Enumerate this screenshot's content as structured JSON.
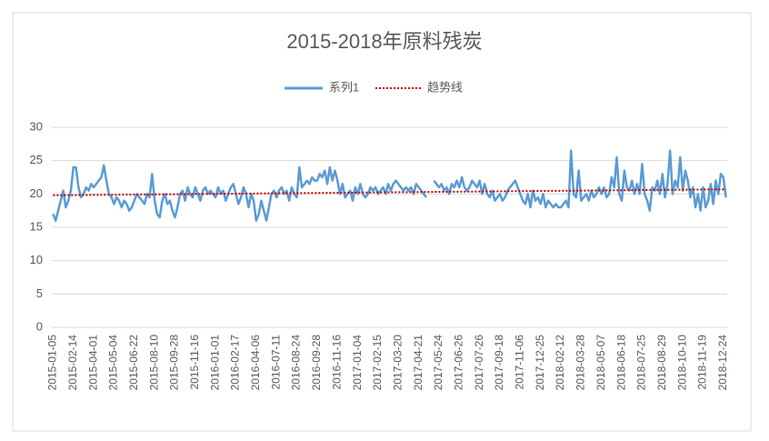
{
  "chart_data": {
    "type": "line",
    "title": "2015-2018年原料残炭",
    "categories": [
      "2015-01-05",
      null,
      null,
      null,
      null,
      null,
      null,
      null,
      "2015-02-14",
      null,
      null,
      null,
      null,
      null,
      null,
      null,
      "2015-04-01",
      null,
      null,
      null,
      null,
      null,
      null,
      null,
      "2015-05-04",
      null,
      null,
      null,
      null,
      null,
      null,
      null,
      "2015-06-22",
      null,
      null,
      null,
      null,
      null,
      null,
      null,
      "2015-08-10",
      null,
      null,
      null,
      null,
      null,
      null,
      null,
      "2015-09-28",
      null,
      null,
      null,
      null,
      null,
      null,
      null,
      "2015-11-16",
      null,
      null,
      null,
      null,
      null,
      null,
      null,
      "2016-01-01",
      null,
      null,
      null,
      null,
      null,
      null,
      null,
      "2016-02-17",
      null,
      null,
      null,
      null,
      null,
      null,
      null,
      "2016-04-06",
      null,
      null,
      null,
      null,
      null,
      null,
      null,
      "2016-07-11",
      null,
      null,
      null,
      null,
      null,
      null,
      null,
      "2016-08-24",
      null,
      null,
      null,
      null,
      null,
      null,
      null,
      "2016-09-28",
      null,
      null,
      null,
      null,
      null,
      null,
      null,
      "2016-11-16",
      null,
      null,
      null,
      null,
      null,
      null,
      null,
      "2017-01-04",
      null,
      null,
      null,
      null,
      null,
      null,
      null,
      "2017-02-15",
      null,
      null,
      null,
      null,
      null,
      null,
      null,
      "2017-03-20",
      null,
      null,
      null,
      null,
      null,
      null,
      null,
      "2017-04-21",
      null,
      null,
      null,
      null,
      null,
      null,
      null,
      "2017-05-24",
      null,
      null,
      null,
      null,
      null,
      null,
      null,
      "2017-06-26",
      null,
      null,
      null,
      null,
      null,
      null,
      null,
      "2017-07-26",
      null,
      null,
      null,
      null,
      null,
      null,
      null,
      "2017-09-18",
      null,
      null,
      null,
      null,
      null,
      null,
      null,
      "2017-11-06",
      null,
      null,
      null,
      null,
      null,
      null,
      null,
      "2017-12-25",
      null,
      null,
      null,
      null,
      null,
      null,
      null,
      "2018-02-12",
      null,
      null,
      null,
      null,
      null,
      null,
      null,
      "2018-03-28",
      null,
      null,
      null,
      null,
      null,
      null,
      null,
      "2018-05-07",
      null,
      null,
      null,
      null,
      null,
      null,
      null,
      "2018-06-18",
      null,
      null,
      null,
      null,
      null,
      null,
      null,
      "2018-07-25",
      null,
      null,
      null,
      null,
      null,
      null,
      null,
      "2018-08-29",
      null,
      null,
      null,
      null,
      null,
      null,
      null,
      "2018-10-10",
      null,
      null,
      null,
      null,
      null,
      null,
      null,
      "2018-11-19",
      null,
      null,
      null,
      null,
      null,
      null,
      null,
      "2018-12-24",
      null
    ],
    "series": [
      {
        "name": "系列1",
        "color": "#5b9bd5",
        "values": [
          17,
          16,
          17.5,
          19,
          20.5,
          18,
          19,
          20.5,
          24,
          24,
          21,
          19.5,
          20,
          21,
          20.5,
          21.5,
          21,
          21.5,
          22,
          22.5,
          24.3,
          22,
          20,
          19.5,
          18.5,
          19.5,
          19,
          18,
          19,
          18.5,
          17.5,
          18,
          19,
          20,
          19.5,
          19,
          18.5,
          20,
          19.5,
          23,
          19,
          17,
          16.5,
          19,
          20,
          18.5,
          19,
          17.5,
          16.5,
          18,
          20,
          20.5,
          19,
          21,
          20,
          19.5,
          21,
          20,
          19,
          20.5,
          21,
          20,
          20.5,
          20,
          19.5,
          21,
          20,
          20.5,
          19,
          20,
          21,
          21.5,
          20,
          18.5,
          19.5,
          21,
          20,
          18,
          20,
          19,
          16,
          17,
          19,
          17.5,
          16,
          18,
          20,
          20.5,
          19.5,
          20.5,
          21,
          20,
          20.5,
          19,
          21,
          20,
          19.5,
          24,
          21,
          21.5,
          22,
          21.5,
          22.5,
          22,
          22,
          23,
          22.5,
          23.5,
          21.5,
          24,
          22,
          23.5,
          22,
          20,
          21.5,
          19.5,
          20,
          20.5,
          19,
          21,
          20,
          21.5,
          20,
          19.5,
          20,
          21,
          20.5,
          21,
          20,
          20.5,
          21,
          20,
          21.5,
          20.5,
          21.5,
          22,
          21.5,
          21,
          20.5,
          21,
          20.5,
          21,
          20,
          21.5,
          21,
          20.5,
          20,
          19.5,
          null,
          null,
          22,
          21.5,
          21,
          21.5,
          20.5,
          21,
          20,
          21.5,
          21,
          22,
          21,
          22.5,
          21,
          20.5,
          21,
          22,
          21.5,
          21,
          22,
          20,
          21.5,
          20,
          19.5,
          20.5,
          19,
          19.5,
          20,
          19,
          19.5,
          20.5,
          21,
          21.5,
          22,
          21,
          20,
          19,
          18.5,
          20,
          18,
          20.5,
          19,
          19.5,
          18.5,
          20,
          18,
          19,
          18.5,
          18,
          18.5,
          18,
          18,
          18.5,
          19,
          18,
          26.5,
          20,
          19.5,
          23.5,
          19,
          19.5,
          20,
          19,
          20.5,
          19.5,
          20,
          21,
          20,
          21,
          19.5,
          20,
          22.5,
          21,
          25.5,
          20,
          19,
          23.5,
          21,
          20.5,
          22,
          20,
          21.5,
          20,
          24.5,
          20,
          19,
          17.5,
          21,
          20.5,
          22,
          20,
          23,
          19.5,
          21.5,
          26.5,
          20,
          22,
          21,
          25.5,
          20.5,
          23.5,
          22,
          19.5,
          21,
          18,
          20,
          17.5,
          21,
          18,
          19,
          21.5,
          18.5,
          22,
          20,
          23,
          22.5,
          19.5
        ]
      }
    ],
    "trendline": {
      "name": "趋势线",
      "color": "#c00000",
      "start": 19.8,
      "end": 20.7
    },
    "ylim": [
      0,
      30
    ],
    "yticks": [
      0,
      5,
      10,
      15,
      20,
      25,
      30
    ],
    "grid": true,
    "legend": "top"
  }
}
